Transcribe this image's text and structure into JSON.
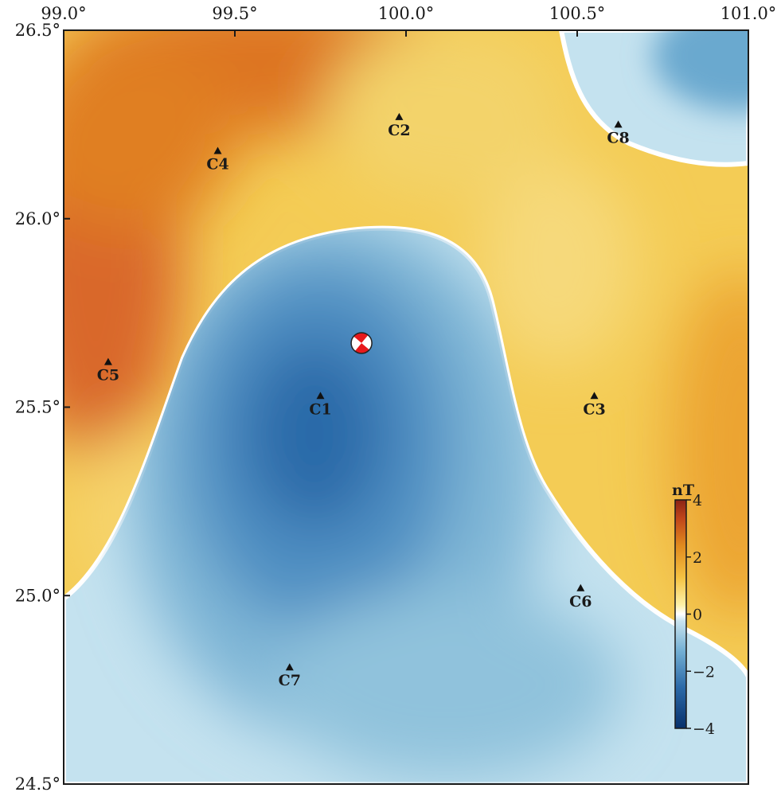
{
  "map": {
    "lon_ticks": [
      "99.0°",
      "99.5°",
      "100.0°",
      "100.5°",
      "101.0°"
    ],
    "lat_ticks": [
      "26.5°",
      "26.0°",
      "25.5°",
      "25.0°",
      "24.5°"
    ],
    "lon_range": [
      99.0,
      101.0
    ],
    "lat_range": [
      24.5,
      26.5
    ]
  },
  "stations": [
    {
      "name": "C1",
      "lon": 99.75,
      "lat": 25.53
    },
    {
      "name": "C2",
      "lon": 99.98,
      "lat": 26.27
    },
    {
      "name": "C3",
      "lon": 100.55,
      "lat": 25.53
    },
    {
      "name": "C4",
      "lon": 99.45,
      "lat": 26.18
    },
    {
      "name": "C5",
      "lon": 99.13,
      "lat": 25.62
    },
    {
      "name": "C6",
      "lon": 100.51,
      "lat": 25.02
    },
    {
      "name": "C7",
      "lon": 99.66,
      "lat": 24.81
    },
    {
      "name": "C8",
      "lon": 100.62,
      "lat": 26.25
    }
  ],
  "epicenter": {
    "lon": 99.87,
    "lat": 25.67,
    "colors": [
      "#e8191c",
      "#ffffff"
    ]
  },
  "colorbar": {
    "unit": "nT",
    "ticks": [
      "4",
      "2",
      "0",
      "−2",
      "−4"
    ],
    "range": [
      -4,
      4
    ],
    "stops": [
      "#08306b",
      "#2171b5",
      "#6baed6",
      "#c6e2ee",
      "#ffffff",
      "#fdf1a8",
      "#f5c242",
      "#e08a1e",
      "#c0451a",
      "#8b2315"
    ]
  }
}
